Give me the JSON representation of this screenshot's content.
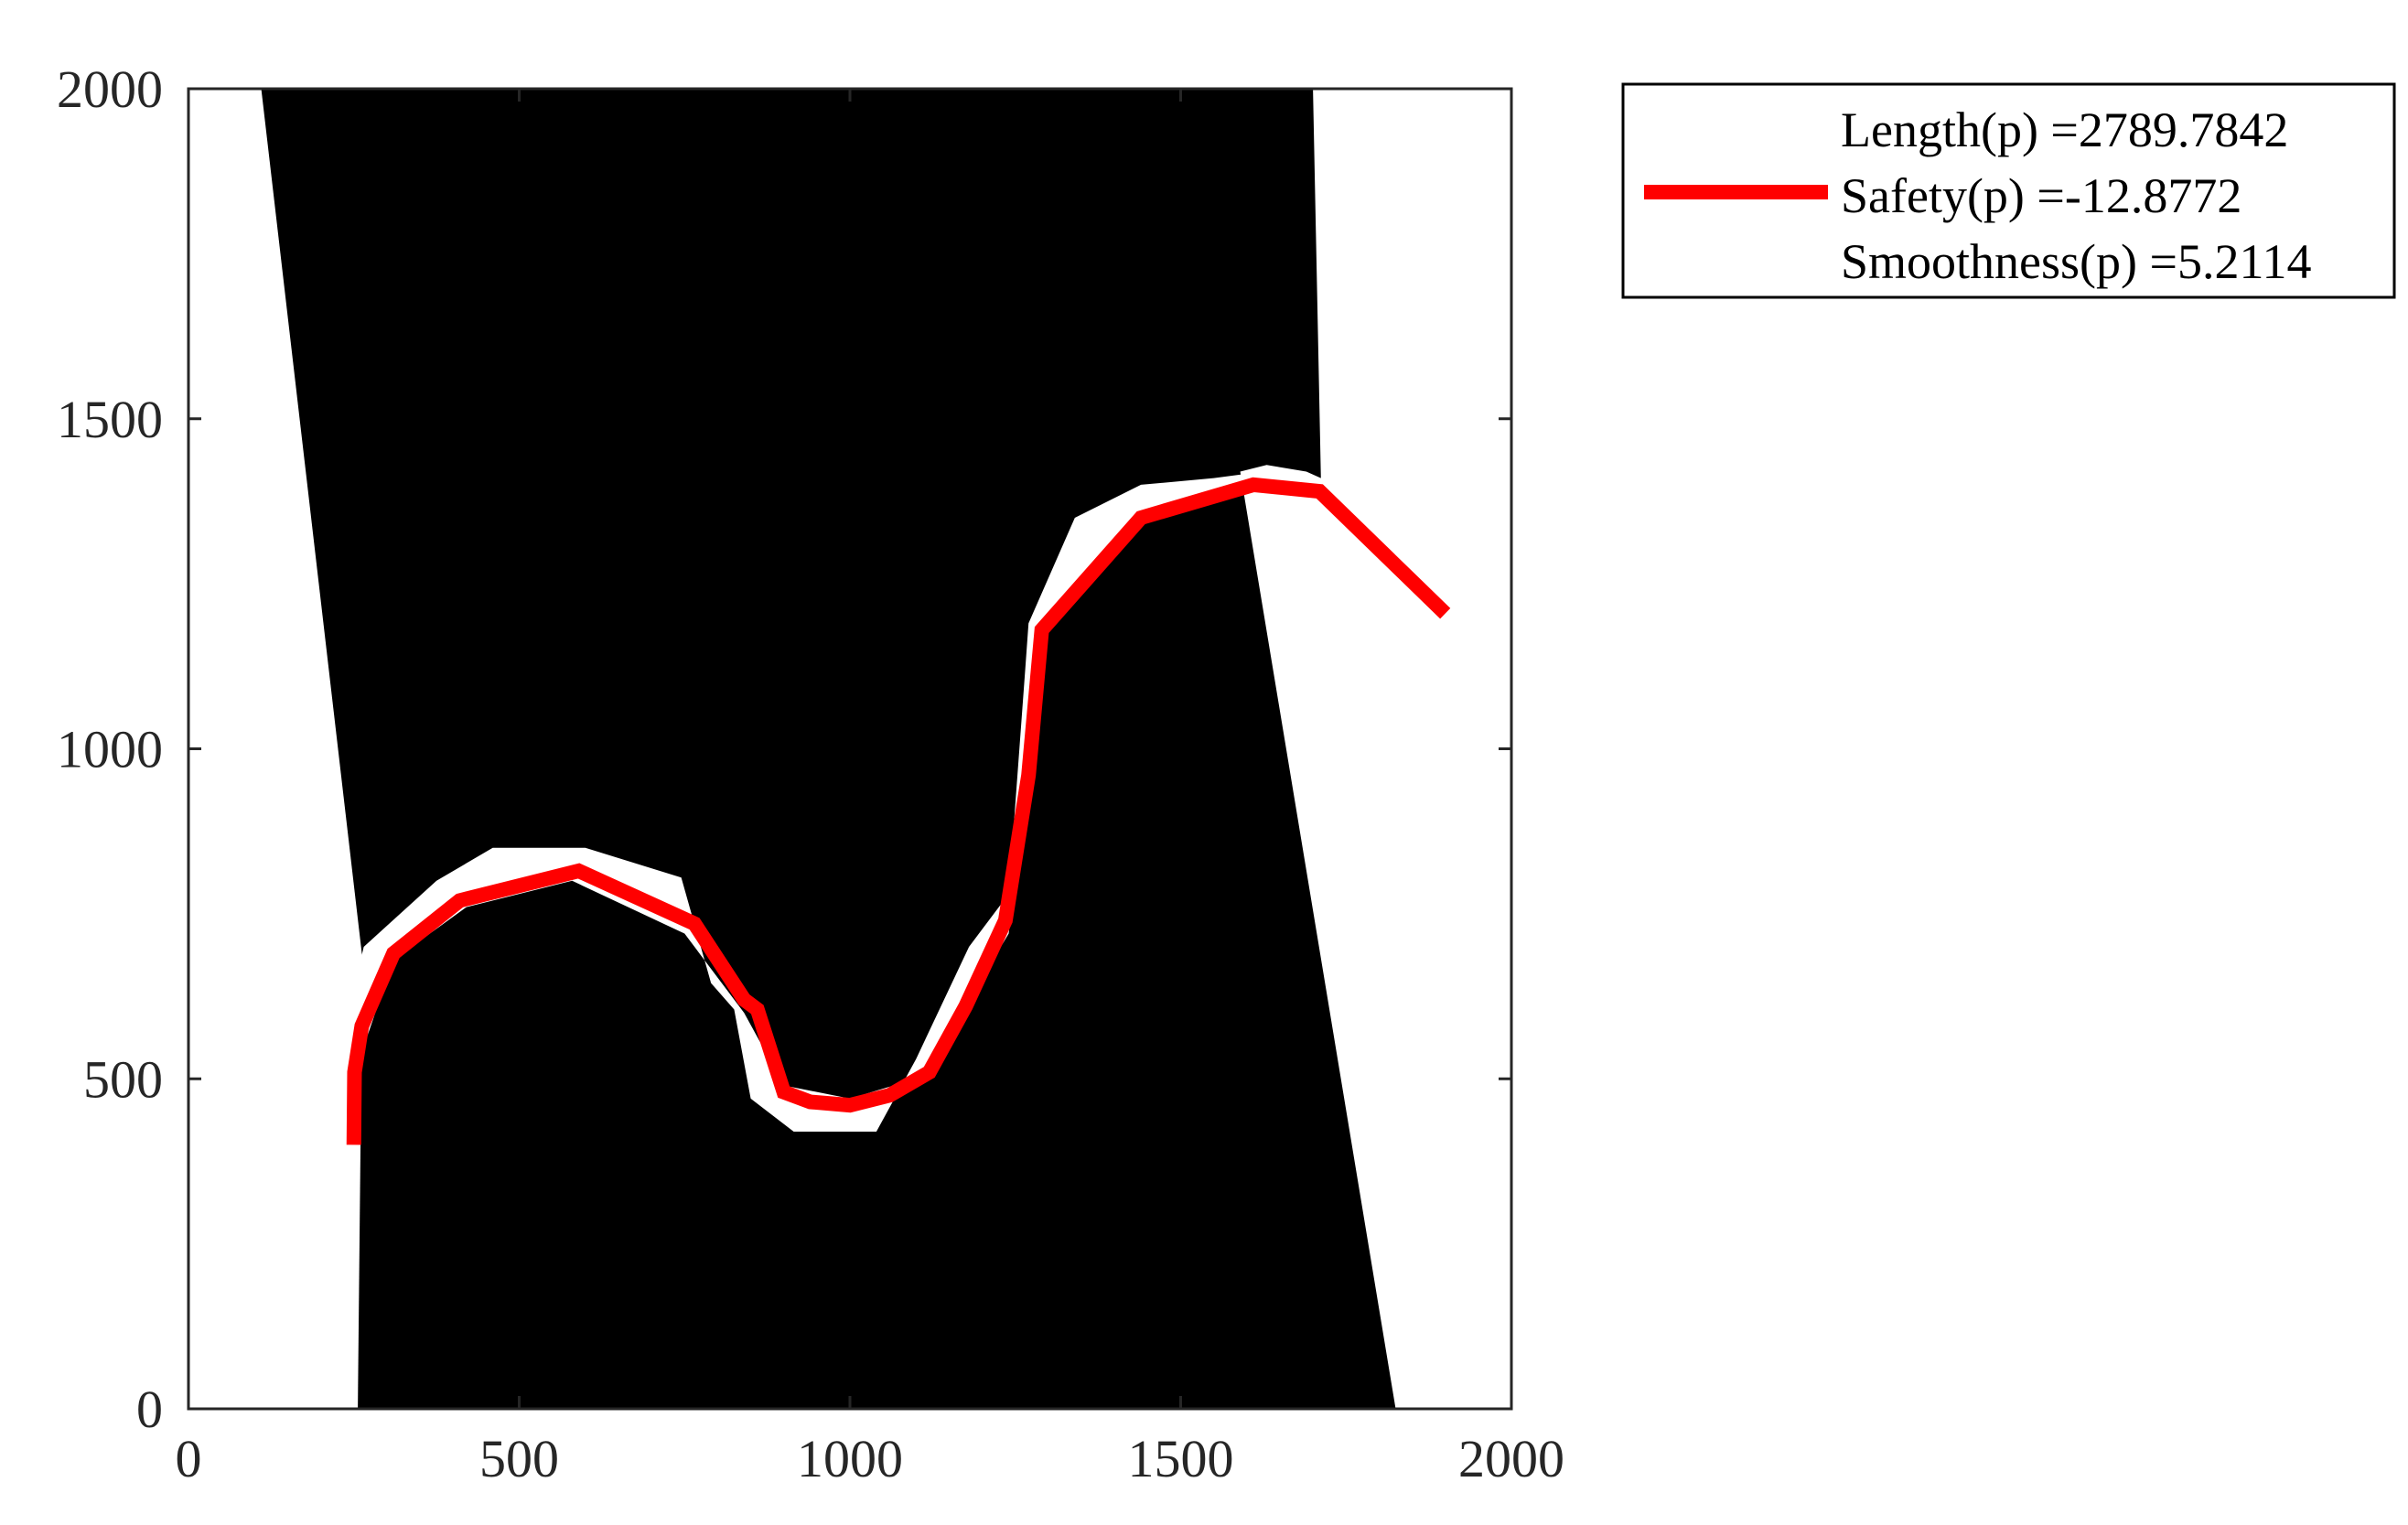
{
  "chart_data": {
    "type": "line",
    "xlim": [
      0,
      2000
    ],
    "ylim": [
      0,
      2000
    ],
    "xticks": [
      0,
      500,
      1000,
      1500,
      2000
    ],
    "yticks": [
      0,
      500,
      1000,
      1500,
      2000
    ],
    "xtick_labels": [
      "0",
      "500",
      "1000",
      "1500",
      "2000"
    ],
    "ytick_labels": [
      "0",
      "500",
      "1000",
      "1500",
      "2000"
    ],
    "grid": false,
    "legend_position": "outside-top-right",
    "background_color": "#ffffff",
    "obstacle_color": "#000000",
    "free_space_color": "#ffffff",
    "free_space_regions": [
      {
        "name": "left wedge",
        "points": [
          [
            0,
            0
          ],
          [
            256,
            0
          ],
          [
            263,
            682
          ],
          [
            110,
            2000
          ],
          [
            0,
            2000
          ]
        ]
      },
      {
        "name": "right wedge",
        "points": [
          [
            1825,
            0
          ],
          [
            2000,
            0
          ],
          [
            2000,
            2000
          ],
          [
            1700,
            2000
          ],
          [
            1712,
            1410
          ],
          [
            1690,
            1420
          ],
          [
            1630,
            1430
          ],
          [
            1590,
            1420
          ]
        ]
      },
      {
        "name": "path corridor",
        "points": [
          [
            232,
            400
          ],
          [
            250,
            400
          ],
          [
            255,
            520
          ],
          [
            310,
            680
          ],
          [
            420,
            760
          ],
          [
            580,
            800
          ],
          [
            750,
            720
          ],
          [
            840,
            600
          ],
          [
            900,
            490
          ],
          [
            1000,
            470
          ],
          [
            1100,
            500
          ],
          [
            1175,
            610
          ],
          [
            1240,
            720
          ],
          [
            1270,
            960
          ],
          [
            1295,
            1180
          ],
          [
            1440,
            1340
          ],
          [
            1590,
            1390
          ],
          [
            1625,
            1420
          ],
          [
            1550,
            1410
          ],
          [
            1440,
            1400
          ],
          [
            1340,
            1350
          ],
          [
            1270,
            1190
          ],
          [
            1265,
            1120
          ],
          [
            1240,
            780
          ],
          [
            1180,
            700
          ],
          [
            1100,
            530
          ],
          [
            1040,
            420
          ],
          [
            915,
            420
          ],
          [
            850,
            470
          ],
          [
            825,
            605
          ],
          [
            790,
            645
          ],
          [
            745,
            805
          ],
          [
            600,
            850
          ],
          [
            460,
            850
          ],
          [
            375,
            800
          ],
          [
            265,
            700
          ],
          [
            232,
            560
          ]
        ]
      }
    ],
    "series": [
      {
        "color": "#ff0000",
        "x": [
          250,
          251,
          262,
          310,
          410,
          590,
          765,
          840,
          860,
          900,
          940,
          1000,
          1060,
          1120,
          1175,
          1235,
          1270,
          1290,
          1440,
          1610,
          1710,
          1900
        ],
        "y": [
          400,
          510,
          580,
          690,
          770,
          815,
          735,
          620,
          605,
          480,
          465,
          460,
          475,
          510,
          610,
          740,
          960,
          1180,
          1350,
          1400,
          1390,
          1205
        ]
      }
    ],
    "legend_entries": [
      "Length(p) =2789.7842",
      "Safety(p) =-12.8772",
      "Smoothness(p) =5.2114"
    ]
  }
}
